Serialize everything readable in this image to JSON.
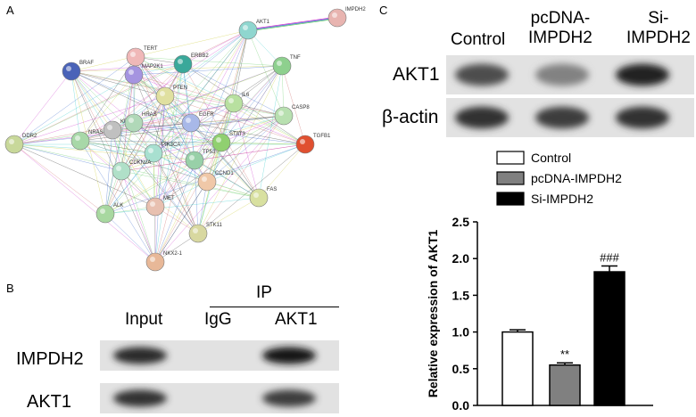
{
  "figure": {
    "panels": {
      "a": "A",
      "b": "B",
      "c": "C"
    }
  },
  "network": {
    "nodes": [
      {
        "id": "IMPDH2",
        "color": "#e8b4b0"
      },
      {
        "id": "AKT1",
        "color": "#8fd6cf"
      },
      {
        "id": "TERT",
        "color": "#f0b8b8"
      },
      {
        "id": "ERBB2",
        "color": "#3aa89a"
      },
      {
        "id": "TNF",
        "color": "#8ed08e"
      },
      {
        "id": "BRAF",
        "color": "#4a63b8"
      },
      {
        "id": "MAP2K1",
        "color": "#a594e0"
      },
      {
        "id": "PTEN",
        "color": "#e0e0a0"
      },
      {
        "id": "IL6",
        "color": "#b8e0a0"
      },
      {
        "id": "CASP8",
        "color": "#b8e0b0"
      },
      {
        "id": "TGFB1",
        "color": "#e05030"
      },
      {
        "id": "DDR2",
        "color": "#c8d89a"
      },
      {
        "id": "NRAS",
        "color": "#a8d8a8"
      },
      {
        "id": "KRAS",
        "color": "#c0c0c0"
      },
      {
        "id": "HRAS",
        "color": "#b0d8b8"
      },
      {
        "id": "EGFR",
        "color": "#a8b8e8"
      },
      {
        "id": "STAT3",
        "color": "#90d070"
      },
      {
        "id": "PIK3CA",
        "color": "#a8e0d0"
      },
      {
        "id": "TP53",
        "color": "#98d0a8"
      },
      {
        "id": "CDKN2A",
        "color": "#b0e0c8"
      },
      {
        "id": "CCND1",
        "color": "#f0c8a8"
      },
      {
        "id": "MET",
        "color": "#e8c0b0"
      },
      {
        "id": "FAS",
        "color": "#d8e0a0"
      },
      {
        "id": "ALK",
        "color": "#a8d8a0"
      },
      {
        "id": "STK11",
        "color": "#d8d8a0"
      },
      {
        "id": "NKX2-1",
        "color": "#e8b898"
      }
    ]
  },
  "coip": {
    "ip_label": "IP",
    "columns": [
      "Input",
      "IgG",
      "AKT1"
    ],
    "rows": [
      {
        "label": "IMPDH2",
        "bands": [
          0.9,
          0.0,
          1.0
        ]
      },
      {
        "label": "AKT1",
        "bands": [
          0.85,
          0.0,
          0.8
        ]
      }
    ]
  },
  "western": {
    "columns": [
      "Control",
      "pcDNA-\nIMPDH2",
      "Si-\nIMPDH2"
    ],
    "rows": [
      {
        "label": "AKT1",
        "bands": [
          0.7,
          0.4,
          0.95
        ]
      },
      {
        "label": "β-actin",
        "bands": [
          0.85,
          0.8,
          0.85
        ]
      }
    ]
  },
  "chart_data": {
    "type": "bar",
    "categories": [
      "Control",
      "pcDNA-IMPDH2",
      "Si-IMPDH2"
    ],
    "values": [
      1.0,
      0.55,
      1.82
    ],
    "errors": [
      0.03,
      0.03,
      0.08
    ],
    "annotations": [
      "",
      "**",
      "###"
    ],
    "colors": [
      "#ffffff",
      "#808080",
      "#000000"
    ],
    "ylabel": "Relative expression of AKT1",
    "ylim": [
      0,
      2.5
    ],
    "yticks": [
      "0.0",
      "0.5",
      "1.0",
      "1.5",
      "2.0",
      "2.5"
    ],
    "legend": [
      "Control",
      "pcDNA-IMPDH2",
      "Si-IMPDH2"
    ],
    "legend_position": "top"
  }
}
